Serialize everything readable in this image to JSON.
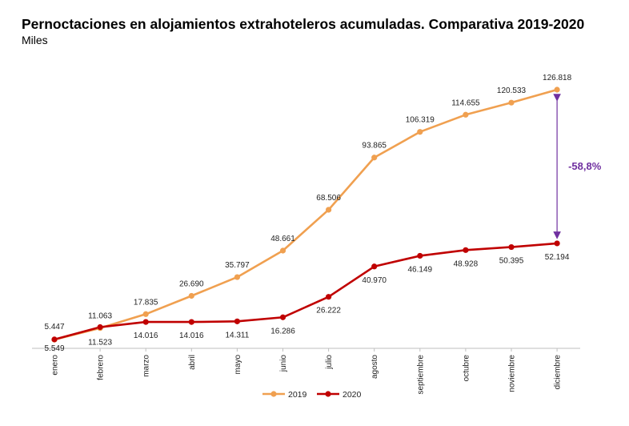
{
  "chart_data": {
    "type": "line",
    "title": "Pernoctaciones en alojamientos extrahoteleros acumuladas. Comparativa 2019-2020",
    "subtitle": "Miles",
    "categories": [
      "enero",
      "febrero",
      "marzo",
      "abril",
      "mayo",
      "junio",
      "julio",
      "agosto",
      "septiembre",
      "octubre",
      "noviembre",
      "diciembre"
    ],
    "series": [
      {
        "name": "2019",
        "color": "#f0a050",
        "values": [
          5447,
          11063,
          17835,
          26690,
          35797,
          48661,
          68506,
          93865,
          106319,
          114655,
          120533,
          126818
        ],
        "labels": [
          "5.447",
          "11.063",
          "17.835",
          "26.690",
          "35.797",
          "48.661",
          "68.506",
          "93.865",
          "106.319",
          "114.655",
          "120.533",
          "126.818"
        ]
      },
      {
        "name": "2020",
        "color": "#c00000",
        "values": [
          5549,
          11523,
          14016,
          14016,
          14311,
          16286,
          26222,
          40970,
          46149,
          48928,
          50395,
          52194
        ],
        "labels": [
          "5.549",
          "11.523",
          "14.016",
          "14.016",
          "14.311",
          "16.286",
          "26.222",
          "40.970",
          "46.149",
          "48.928",
          "50.395",
          "52.194"
        ]
      }
    ],
    "annotation": {
      "text": "-58,8%",
      "category": "diciembre",
      "color": "#7030a0"
    },
    "legend_position": "bottom",
    "grid": false
  }
}
